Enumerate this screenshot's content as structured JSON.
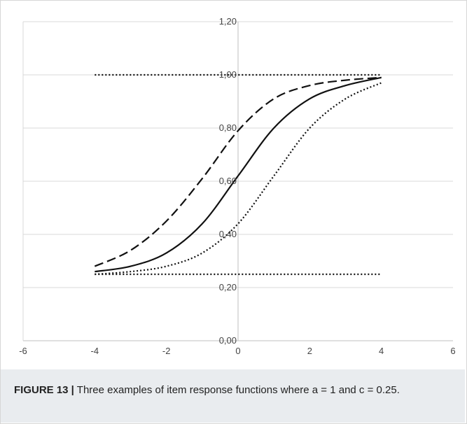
{
  "caption": {
    "label": "FIGURE 13 |",
    "text": "Three examples of item response functions where a = 1 and c = 0.25."
  },
  "chart_data": {
    "type": "line",
    "xlim": [
      -6,
      6
    ],
    "ylim": [
      0,
      1.2
    ],
    "x_ticks": [
      -6,
      -4,
      -2,
      0,
      2,
      4,
      6
    ],
    "x_tick_labels": [
      "-6",
      "-4",
      "-2",
      "0",
      "2",
      "4",
      "6"
    ],
    "y_ticks": [
      0,
      0.2,
      0.4,
      0.6,
      0.8,
      1.0,
      1.2
    ],
    "y_tick_labels": [
      "0,00",
      "0,20",
      "0,40",
      "0,60",
      "0,80",
      "1,00",
      "1,20"
    ],
    "grid": "horizontal",
    "colors": {
      "line": "#111111",
      "grid": "#d9d9d9",
      "axis": "#bfbfbf"
    },
    "series": [
      {
        "style": "dashed",
        "x": [
          -4,
          -3,
          -2,
          -1,
          0,
          1,
          2,
          3,
          4
        ],
        "y": [
          0.28,
          0.34,
          0.45,
          0.61,
          0.79,
          0.91,
          0.96,
          0.98,
          0.99
        ]
      },
      {
        "style": "solid",
        "x": [
          -4,
          -3,
          -2,
          -1,
          0,
          1,
          2,
          3,
          4
        ],
        "y": [
          0.26,
          0.28,
          0.33,
          0.44,
          0.62,
          0.8,
          0.91,
          0.96,
          0.99
        ]
      },
      {
        "style": "dotted",
        "x": [
          -4,
          -3,
          -2,
          -1,
          0,
          1,
          2,
          3,
          4
        ],
        "y": [
          0.25,
          0.26,
          0.28,
          0.33,
          0.44,
          0.62,
          0.8,
          0.91,
          0.97
        ]
      },
      {
        "style": "dotted",
        "x": [
          -4,
          4
        ],
        "y": [
          1.0,
          1.0
        ]
      },
      {
        "style": "dotted",
        "x": [
          -4,
          4
        ],
        "y": [
          0.25,
          0.25
        ]
      }
    ]
  }
}
